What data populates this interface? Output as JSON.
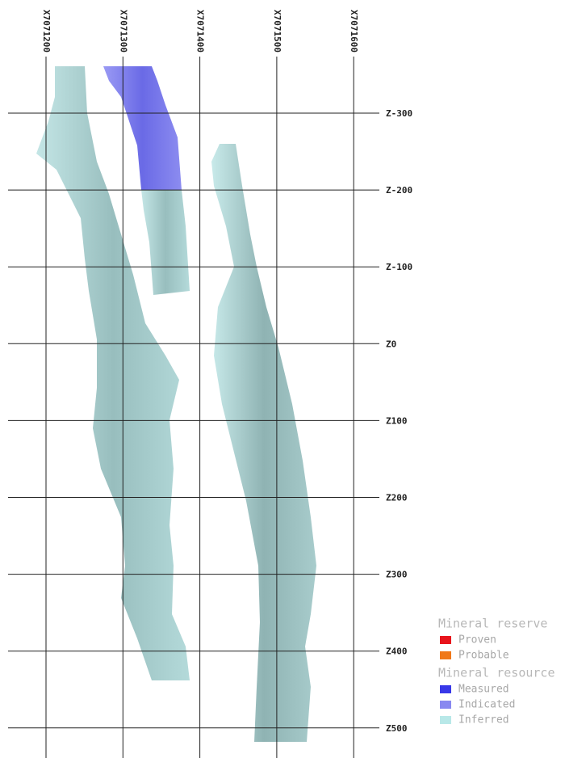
{
  "section": {
    "x_labels": [
      "X7071200",
      "X7071300",
      "X7071400",
      "X7071500",
      "X7071600"
    ],
    "z_labels": [
      "Z-300",
      "Z-200",
      "Z-100",
      "Z0",
      "Z100",
      "Z200",
      "Z300",
      "Z400",
      "Z500"
    ]
  },
  "legend": [
    {
      "title": "Mineral reserve",
      "items": [
        {
          "label": "Proven",
          "color": "#e8141c"
        },
        {
          "label": "Probable",
          "color": "#f07818"
        }
      ]
    },
    {
      "title": "Mineral resource",
      "items": [
        {
          "label": "Measured",
          "color": "#3838e8"
        },
        {
          "label": "Indicated",
          "color": "#8888f0"
        },
        {
          "label": "Inferred",
          "color": "#b8e8e8"
        }
      ]
    }
  ]
}
